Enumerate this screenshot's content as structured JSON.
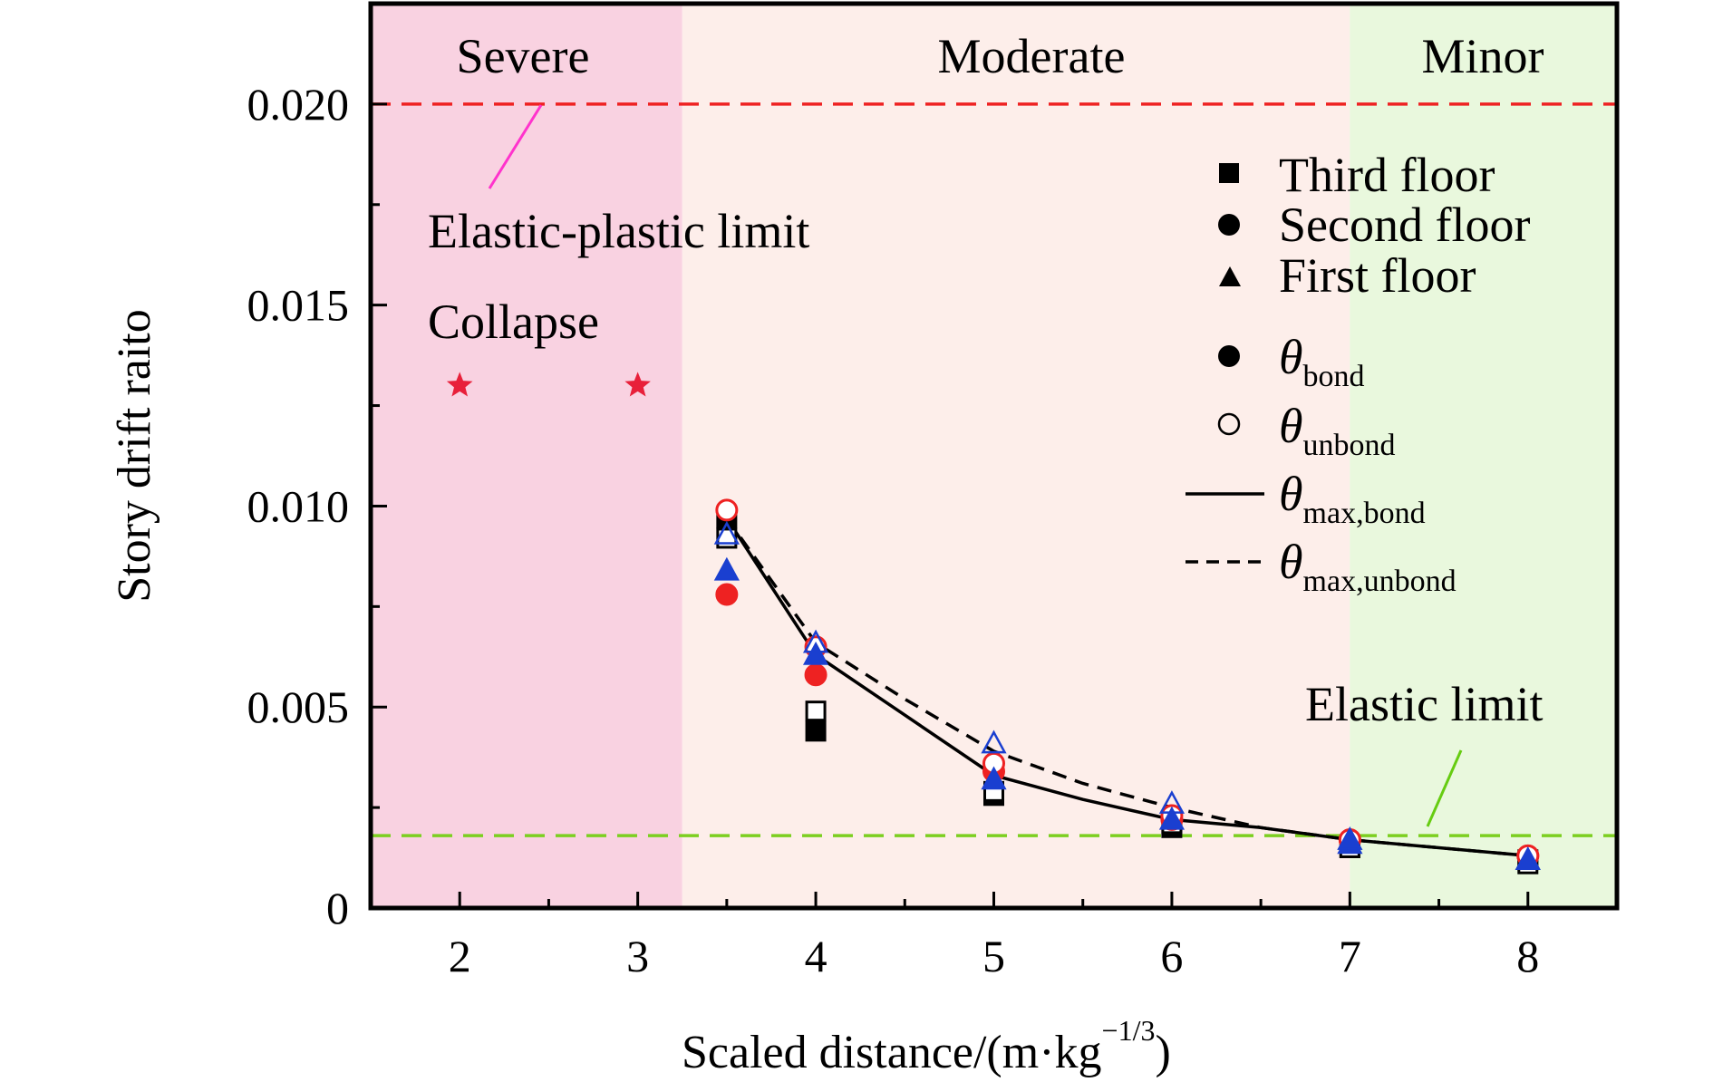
{
  "chart_data": {
    "type": "scatter",
    "xlabel": "Scaled distance/(m·kg",
    "xlabel_sup": "−1/3",
    "xlabel_close": ")",
    "ylabel": "Story drift raito",
    "xlim": [
      1.5,
      8.5
    ],
    "ylim": [
      0,
      0.0225
    ],
    "xticks": [
      2,
      3,
      4,
      5,
      6,
      7,
      8
    ],
    "xtick_labels": [
      "2",
      "3",
      "4",
      "5",
      "6",
      "7",
      "8"
    ],
    "yticks": [
      0,
      0.005,
      0.01,
      0.015,
      0.02
    ],
    "ytick_labels": [
      "0",
      "0.005",
      "0.010",
      "0.015",
      "0.020"
    ],
    "zones": [
      {
        "label": "Severe",
        "x0": 1.5,
        "x1": 3.25,
        "color": "#f9d2e1"
      },
      {
        "label": "Moderate",
        "x0": 3.25,
        "x1": 7.0,
        "color": "#fdeeea"
      },
      {
        "label": "Minor",
        "x0": 7.0,
        "x1": 8.5,
        "color": "#e9f8dd"
      }
    ],
    "reference_lines": [
      {
        "label": "Elastic-plastic limit",
        "y": 0.02,
        "color": "#ee2222"
      },
      {
        "label": "Elastic limit",
        "y": 0.0018,
        "color": "#7ccf20"
      }
    ],
    "collapse": {
      "label": "Collapse",
      "x": [
        2,
        3
      ],
      "y": [
        0.013,
        0.013
      ],
      "color": "#e8203a"
    },
    "series": [
      {
        "name": "Third floor",
        "marker": "square",
        "filled": true,
        "color": "#000000",
        "x": [
          3.5,
          4,
          5,
          6,
          7,
          8
        ],
        "y": [
          0.0097,
          0.0044,
          0.0028,
          0.002,
          0.0015,
          0.0012
        ]
      },
      {
        "name": "Third floor",
        "marker": "square",
        "filled": false,
        "color": "#000000",
        "x": [
          3.5,
          4,
          5,
          6,
          7,
          8
        ],
        "y": [
          0.0092,
          0.0049,
          0.0029,
          0.0021,
          0.0015,
          0.0011
        ]
      },
      {
        "name": "Second floor",
        "marker": "circle",
        "filled": true,
        "color": "#ee2222",
        "x": [
          3.5,
          4,
          5,
          6,
          7,
          8
        ],
        "y": [
          0.0078,
          0.0058,
          0.0034,
          0.0022,
          0.0017,
          0.0013
        ]
      },
      {
        "name": "Second floor",
        "marker": "circle",
        "filled": false,
        "color": "#ee2222",
        "x": [
          3.5,
          4,
          5,
          6,
          7,
          8
        ],
        "y": [
          0.0099,
          0.0065,
          0.0036,
          0.0023,
          0.0017,
          0.0013
        ]
      },
      {
        "name": "First floor",
        "marker": "triangle",
        "filled": true,
        "color": "#1a3fd0",
        "x": [
          3.5,
          4,
          5,
          6,
          7,
          8
        ],
        "y": [
          0.0084,
          0.0063,
          0.0032,
          0.0022,
          0.0016,
          0.0012
        ]
      },
      {
        "name": "First floor",
        "marker": "triangle",
        "filled": false,
        "color": "#1a3fd0",
        "x": [
          3.5,
          4,
          5,
          6,
          7,
          8
        ],
        "y": [
          0.0093,
          0.0066,
          0.0041,
          0.0026,
          0.0017,
          0.0012
        ]
      }
    ],
    "curves": [
      {
        "name": "θmax,bond",
        "style": "solid",
        "x": [
          3.5,
          4,
          4.5,
          5,
          5.5,
          6,
          6.5,
          7,
          7.5,
          8
        ],
        "y": [
          0.0097,
          0.0063,
          0.0048,
          0.0033,
          0.0027,
          0.0022,
          0.002,
          0.0017,
          0.0015,
          0.0013
        ]
      },
      {
        "name": "θmax,unbond",
        "style": "dashed",
        "x": [
          3.5,
          4,
          4.5,
          5,
          5.5,
          6,
          6.5,
          7,
          7.5,
          8
        ],
        "y": [
          0.0097,
          0.0066,
          0.0052,
          0.0039,
          0.0031,
          0.0025,
          0.002,
          0.0017,
          0.0015,
          0.0013
        ]
      }
    ],
    "legend": {
      "placement": "top-right",
      "items": [
        {
          "marker": "square",
          "label": "Third floor"
        },
        {
          "marker": "circle",
          "label": "Second floor"
        },
        {
          "marker": "triangle",
          "label": "First floor"
        },
        {
          "marker": "circle",
          "label": "θ",
          "sub": "bond"
        },
        {
          "marker": "open-circle",
          "label": "θ",
          "sub": "unbond"
        },
        {
          "marker": "solid-line",
          "label": "θ",
          "sub": "max,bond"
        },
        {
          "marker": "dashed-line",
          "label": "θ",
          "sub": "max,unbond"
        }
      ]
    },
    "grid": false
  }
}
